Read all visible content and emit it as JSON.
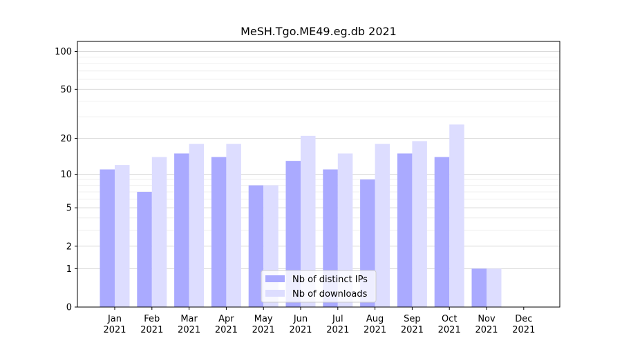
{
  "chart_data": {
    "type": "bar",
    "title": "MeSH.Tgo.ME49.eg.db 2021",
    "xlabel": "",
    "ylabel": "",
    "yscale": "symlog",
    "ylim": [
      0,
      120
    ],
    "yticks": [
      0,
      1,
      2,
      5,
      10,
      20,
      50,
      100
    ],
    "categories": [
      [
        "Jan",
        "2021"
      ],
      [
        "Feb",
        "2021"
      ],
      [
        "Mar",
        "2021"
      ],
      [
        "Apr",
        "2021"
      ],
      [
        "May",
        "2021"
      ],
      [
        "Jun",
        "2021"
      ],
      [
        "Jul",
        "2021"
      ],
      [
        "Aug",
        "2021"
      ],
      [
        "Sep",
        "2021"
      ],
      [
        "Oct",
        "2021"
      ],
      [
        "Nov",
        "2021"
      ],
      [
        "Dec",
        "2021"
      ]
    ],
    "series": [
      {
        "name": "Nb of distinct IPs",
        "color": "#aaaaff",
        "values": [
          11,
          7,
          15,
          14,
          8,
          13,
          11,
          9,
          15,
          14,
          1,
          0
        ]
      },
      {
        "name": "Nb of downloads",
        "color": "#ddddff",
        "values": [
          12,
          14,
          18,
          18,
          8,
          21,
          15,
          18,
          19,
          26,
          1,
          0
        ]
      }
    ],
    "grid": true,
    "legend_position": "bottom-center"
  }
}
